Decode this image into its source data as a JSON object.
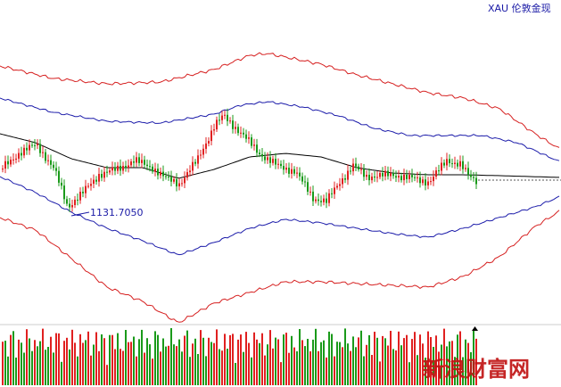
{
  "chart_data": {
    "type": "line",
    "title": "XAU 伦敦金现",
    "annotations": [
      {
        "label": "1131.7050",
        "x": 78,
        "y": 1131.705
      }
    ],
    "colors": {
      "candle_up": "#e02020",
      "candle_down": "#1a9a1a",
      "ma": "#000000",
      "band_inner": "#1c1caa",
      "band_outer": "#d62020",
      "last_price": "#555555"
    },
    "watermark": "新浪财富网"
  }
}
